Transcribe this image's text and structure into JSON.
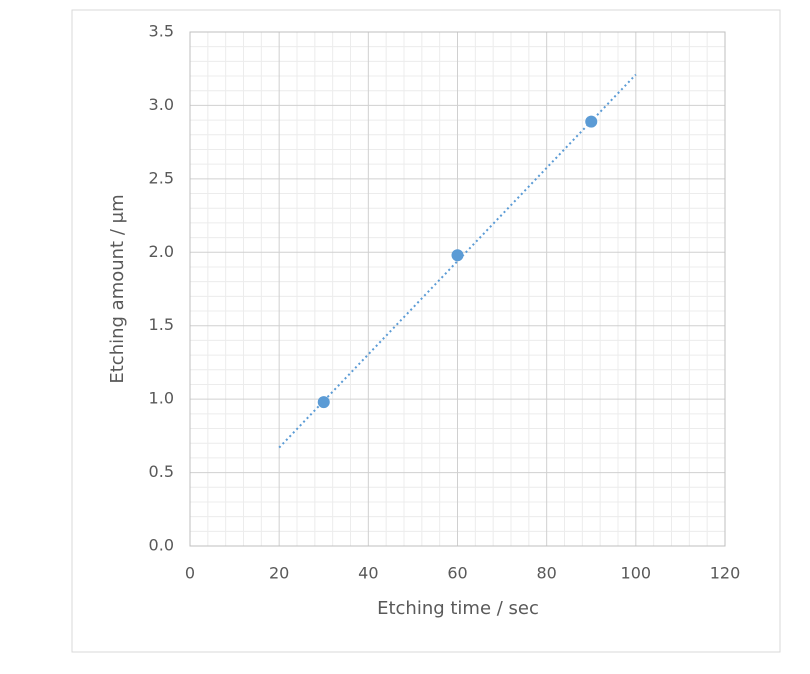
{
  "chart_data": {
    "type": "scatter",
    "x_label": "Etching time / sec",
    "y_label": "Etching amount / μm",
    "series": [
      {
        "color": "#5b9bd5",
        "x": [
          30,
          60,
          90
        ],
        "values": [
          0.98,
          1.98,
          2.89
        ]
      }
    ],
    "trendline": {
      "color": "#5b9bd5",
      "style": "dotted",
      "x": [
        20,
        100
      ],
      "values": [
        0.67,
        3.21
      ]
    },
    "xlim": [
      0,
      120
    ],
    "xticks": [
      0,
      20,
      40,
      60,
      80,
      100,
      120
    ],
    "ylim": [
      0,
      3.5
    ],
    "yticks": [
      {
        "value": 0,
        "label": "0.0"
      },
      0.5,
      {
        "value": 1,
        "label": "1.0"
      },
      1.5,
      {
        "value": 2,
        "label": "2.0"
      },
      2.5,
      {
        "value": 3,
        "label": "3.0"
      },
      3.5
    ],
    "grid": true,
    "minor_grid": true
  }
}
